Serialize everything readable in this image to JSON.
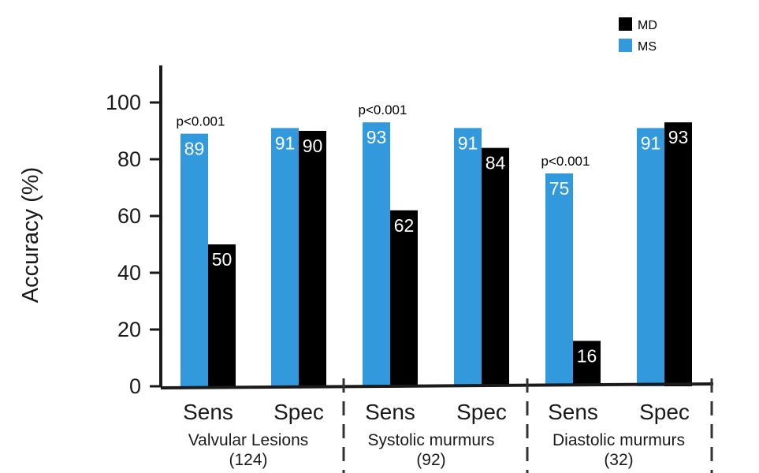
{
  "chart_data": {
    "type": "bar",
    "ylabel": "Accuracy (%)",
    "ylim": [
      0,
      110
    ],
    "yticks": [
      0,
      20,
      40,
      60,
      80,
      100
    ],
    "grid": false,
    "legend_position": "top-right",
    "series": [
      {
        "name": "MS",
        "color": "#3399dd"
      },
      {
        "name": "MD",
        "color": "#000000"
      }
    ],
    "groups": [
      {
        "label": "Valvular Lesions",
        "count": "(124)",
        "categories": [
          {
            "label": "Sens",
            "values": [
              89,
              50
            ],
            "annotation": "p<0.001"
          },
          {
            "label": "Spec",
            "values": [
              91,
              90
            ],
            "annotation": ""
          }
        ]
      },
      {
        "label": "Systolic murmurs",
        "count": "(92)",
        "categories": [
          {
            "label": "Sens",
            "values": [
              93,
              62
            ],
            "annotation": "p<0.001"
          },
          {
            "label": "Spec",
            "values": [
              91,
              84
            ],
            "annotation": ""
          }
        ]
      },
      {
        "label": "Diastolic murmurs",
        "count": "(32)",
        "categories": [
          {
            "label": "Sens",
            "values": [
              75,
              16
            ],
            "annotation": "p<0.001"
          },
          {
            "label": "Spec",
            "values": [
              91,
              93
            ],
            "annotation": ""
          }
        ]
      }
    ]
  }
}
